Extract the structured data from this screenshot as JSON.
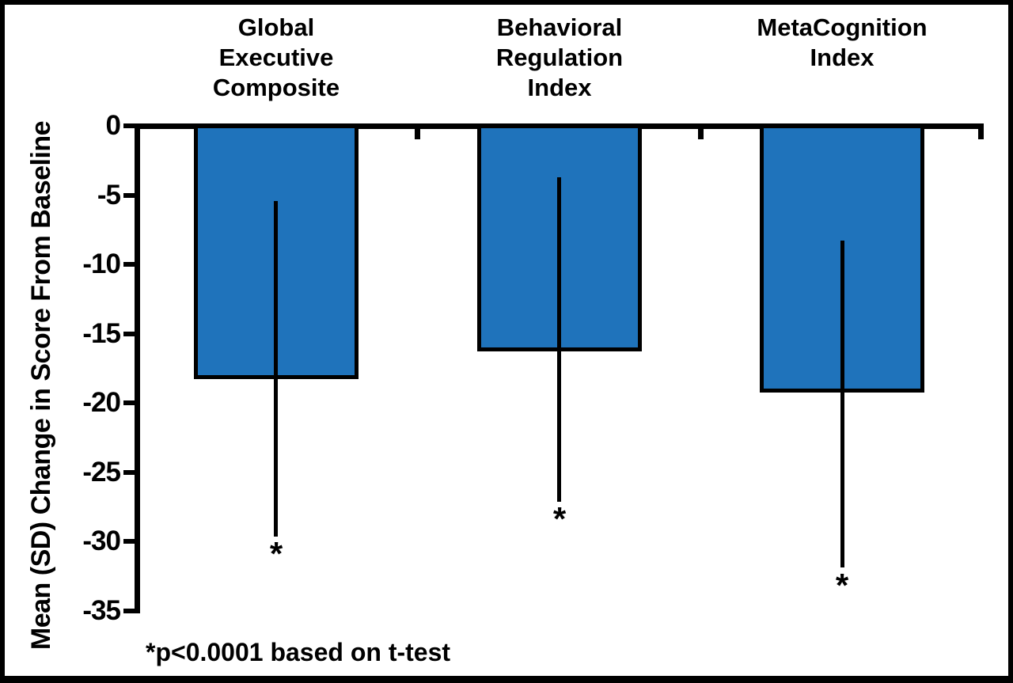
{
  "figure": {
    "background": "#ffffff",
    "frame_color": "#000000"
  },
  "chart_data": {
    "type": "bar",
    "orientation": "vertical",
    "title": "",
    "xlabel": "",
    "ylabel": "Mean (SD) Change in Score From Baseline",
    "ylim": [
      -35,
      0
    ],
    "yticks": [
      0,
      -5,
      -10,
      -15,
      -20,
      -25,
      -30,
      -35
    ],
    "ytick_labels": [
      "0",
      "-5",
      "-10",
      "-15",
      "-20",
      "-25",
      "-30",
      "-35"
    ],
    "grid": false,
    "legend": null,
    "bar_color": "#1F73BB",
    "bar_border_color": "#000000",
    "error_bar_color": "#000000",
    "annotation": "*p<0.0001 based on t-test",
    "categories": [
      {
        "label": "Global Executive Composite",
        "label_lines": [
          "Global",
          "Executive",
          "Composite"
        ],
        "value": -18.1,
        "error_top": -5.4,
        "error_bottom": -29.6,
        "significance": "*"
      },
      {
        "label": "Behavioral Regulation Index",
        "label_lines": [
          "Behavioral",
          "Regulation",
          "Index"
        ],
        "value": -16.1,
        "error_top": -3.7,
        "error_bottom": -27.1,
        "significance": "*"
      },
      {
        "label": "MetaCognition Index",
        "label_lines": [
          "MetaCognition",
          "Index"
        ],
        "value": -19.1,
        "error_top": -8.3,
        "error_bottom": -31.9,
        "significance": "*"
      }
    ]
  }
}
